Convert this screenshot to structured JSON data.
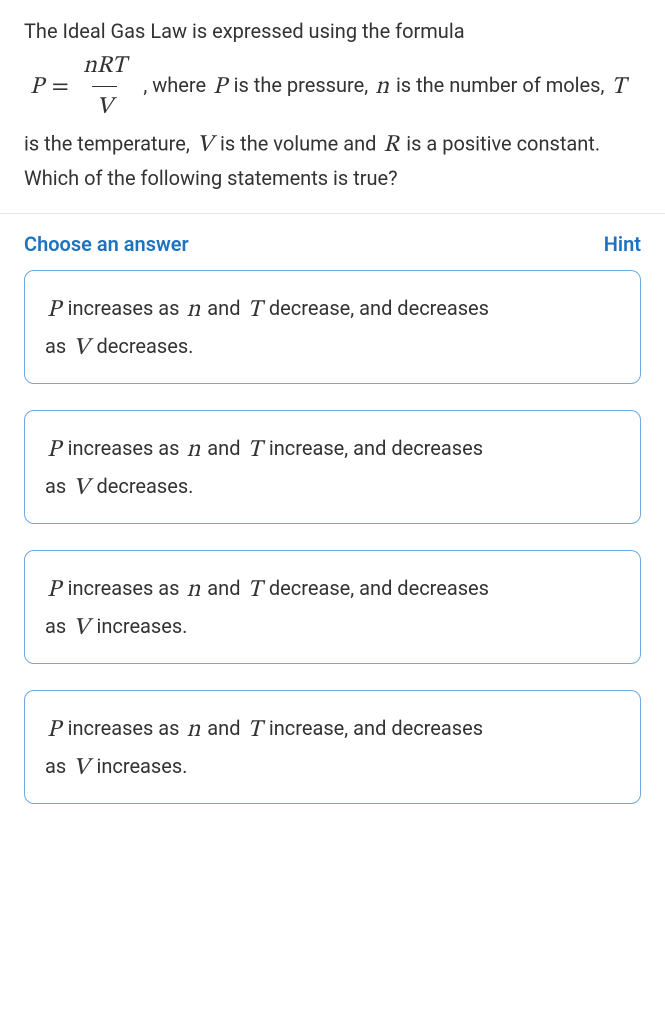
{
  "question": {
    "intro": "The Ideal Gas Law is expressed using the formula",
    "P": "P",
    "eq": "=",
    "num": "nRT",
    "den": "V",
    "where": ", where",
    "is_pressure": "is the pressure,",
    "n": "n",
    "is_number": "is the number",
    "of_moles": "of moles,",
    "T": "T",
    "is_temp": "is the temperature,",
    "V": "V",
    "is_volume": "is the volume and",
    "R": "R",
    "is_const": "is",
    "tail": "a positive constant. Which of the following statements is true?"
  },
  "choose_label": "Choose an answer",
  "hint_label": "Hint",
  "answers": [
    {
      "p": "P",
      "t1": "increases as",
      "n": "n",
      "t2": "and",
      "T": "T",
      "t3": "decrease, and decreases",
      "t4": "as",
      "V": "V",
      "t5": "decreases."
    },
    {
      "p": "P",
      "t1": "increases as",
      "n": "n",
      "t2": "and",
      "T": "T",
      "t3": "increase, and decreases",
      "t4": "as",
      "V": "V",
      "t5": "decreases."
    },
    {
      "p": "P",
      "t1": "increases as",
      "n": "n",
      "t2": "and",
      "T": "T",
      "t3": "decrease, and decreases",
      "t4": "as",
      "V": "V",
      "t5": "increases."
    },
    {
      "p": "P",
      "t1": "increases as",
      "n": "n",
      "t2": "and",
      "T": "T",
      "t3": "increase, and decreases",
      "t4": "as",
      "V": "V",
      "t5": "increases."
    }
  ],
  "colors": {
    "text": "#333333",
    "accent": "#1e73be",
    "answer_border": "#6fa8dc",
    "divider": "#e5e5e5",
    "background": "#ffffff"
  }
}
